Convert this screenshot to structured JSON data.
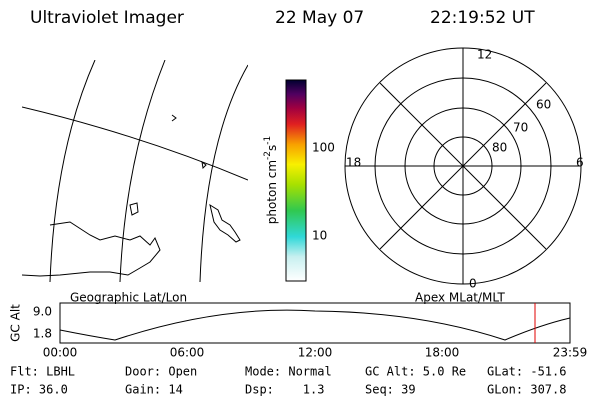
{
  "header": {
    "title": "Ultraviolet Imager",
    "date": "22 May 07",
    "time": "22:19:52 UT"
  },
  "colorbar": {
    "label": [
      "photon cm",
      "-2",
      "s",
      "-1"
    ],
    "ticks": [
      "100",
      "10"
    ]
  },
  "polar": {
    "clock": [
      "12",
      "18",
      "6",
      "0"
    ],
    "rings": [
      "60",
      "70",
      "80"
    ]
  },
  "altitude": {
    "left_title": "Geographic Lat/Lon",
    "right_title": "Apex MLat/MLT",
    "axis_label": "GC Alt",
    "yticks": [
      "9.0",
      "1.8"
    ],
    "xticks": [
      "00:00",
      "06:00",
      "12:00",
      "18:00",
      "23:59"
    ]
  },
  "footer": {
    "rows": [
      [
        "Flt: LBHL",
        "Door: Open",
        "Mode: Normal",
        "GC Alt: 5.0 Re",
        "GLat: -51.6"
      ],
      [
        "IP: 36.0",
        "Gain: 14",
        "Dsp:    1.3",
        "Seq: 39",
        "GLon: 307.8"
      ]
    ]
  }
}
